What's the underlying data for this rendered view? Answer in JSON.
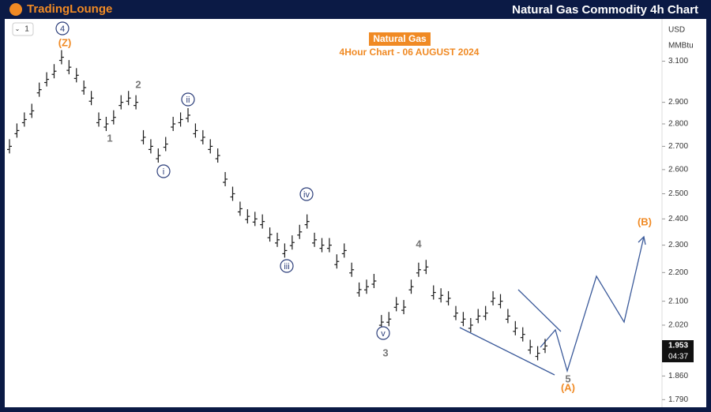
{
  "chart_data": {
    "type": "ohlc",
    "title": "Natural Gas Commodity 4h Chart",
    "brand": "TradingLounge",
    "subtitle": "4Hour Chart - 06 AUGUST 2024",
    "currency": "USD",
    "unit": "MMBtu",
    "interval": "1",
    "countdown": "04:37",
    "log_scale": true,
    "ylim": [
      1.768,
      3.32
    ],
    "yticks": [
      {
        "value": 1.79,
        "label": "1.790"
      },
      {
        "value": 1.86,
        "label": "1.860"
      },
      {
        "value": 2.02,
        "label": "2.020"
      },
      {
        "value": 2.1,
        "label": "2.100"
      },
      {
        "value": 2.2,
        "label": "2.200"
      },
      {
        "value": 2.3,
        "label": "2.300"
      },
      {
        "value": 2.4,
        "label": "2.400"
      },
      {
        "value": 2.5,
        "label": "2.500"
      },
      {
        "value": 2.6,
        "label": "2.600"
      },
      {
        "value": 2.7,
        "label": "2.700"
      },
      {
        "value": 2.8,
        "label": "2.800"
      },
      {
        "value": 2.9,
        "label": "2.900"
      },
      {
        "value": 3.1,
        "label": "3.100"
      }
    ],
    "series": [
      {
        "name": "Natural Gas",
        "color": "#1a1a1a",
        "values": [
          2.7,
          2.77,
          2.82,
          2.86,
          2.96,
          3.01,
          3.05,
          3.12,
          3.07,
          3.03,
          2.97,
          2.92,
          2.82,
          2.8,
          2.83,
          2.9,
          2.92,
          2.9,
          2.74,
          2.7,
          2.66,
          2.71,
          2.8,
          2.82,
          2.84,
          2.77,
          2.74,
          2.7,
          2.66,
          2.56,
          2.5,
          2.44,
          2.41,
          2.4,
          2.39,
          2.34,
          2.32,
          2.28,
          2.31,
          2.35,
          2.39,
          2.32,
          2.3,
          2.3,
          2.24,
          2.28,
          2.21,
          2.14,
          2.15,
          2.17,
          2.03,
          2.04,
          2.09,
          2.08,
          2.15,
          2.21,
          2.22,
          2.13,
          2.12,
          2.11,
          2.06,
          2.04,
          2.02,
          2.05,
          2.06,
          2.11,
          2.1,
          2.05,
          2.01,
          1.99,
          1.95,
          1.93,
          1.953
        ]
      }
    ],
    "wave_labels": [
      "4",
      "(Z)",
      "2",
      "1",
      "i",
      "ii",
      "iii",
      "iv",
      "v",
      "3",
      "4",
      "5",
      "(A)",
      "(B)"
    ]
  }
}
